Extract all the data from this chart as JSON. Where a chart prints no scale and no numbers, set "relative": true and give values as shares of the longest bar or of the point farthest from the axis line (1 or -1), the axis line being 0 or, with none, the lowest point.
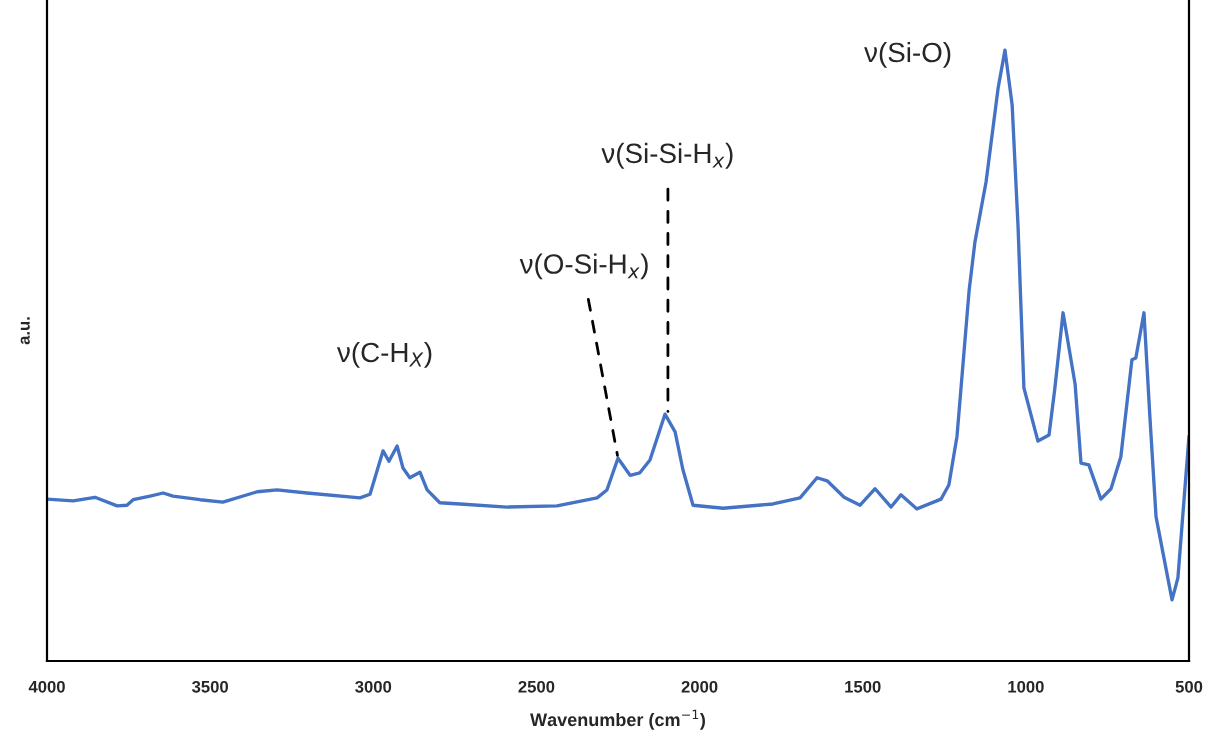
{
  "chart_data": {
    "type": "line",
    "relative": true,
    "xlabel": "Wavenumber (cm$^{−1}$)",
    "ylabel": "a.u.",
    "xlim": [
      4000,
      500
    ],
    "xticks": [
      4000,
      3500,
      3000,
      2500,
      2000,
      1500,
      1000,
      500
    ],
    "grid": false,
    "legend": false,
    "marker": "none",
    "line_style": "solid",
    "series": [
      {
        "color": "#4472c4",
        "x": [
          4000,
          3920,
          3853,
          3785,
          3755,
          3736,
          3684,
          3644,
          3614,
          3531,
          3461,
          3356,
          3295,
          3203,
          3041,
          3010,
          2970,
          2952,
          2927,
          2909,
          2888,
          2857,
          2835,
          2796,
          2734,
          2590,
          2437,
          2314,
          2284,
          2250,
          2213,
          2183,
          2152,
          2106,
          2075,
          2051,
          2020,
          1928,
          1775,
          1692,
          1640,
          1609,
          1557,
          1508,
          1462,
          1413,
          1383,
          1334,
          1260,
          1236,
          1211,
          1174,
          1156,
          1122,
          1085,
          1064,
          1042,
          1024,
          1006,
          963,
          929,
          911,
          886,
          849,
          831,
          807,
          770,
          739,
          709,
          675,
          663,
          638,
          620,
          601,
          552,
          534,
          500
        ],
        "values": [
          0.265,
          0.262,
          0.268,
          0.254,
          0.255,
          0.264,
          0.27,
          0.275,
          0.27,
          0.264,
          0.26,
          0.277,
          0.28,
          0.275,
          0.267,
          0.273,
          0.344,
          0.327,
          0.352,
          0.316,
          0.3,
          0.309,
          0.28,
          0.259,
          0.257,
          0.252,
          0.254,
          0.267,
          0.28,
          0.332,
          0.304,
          0.308,
          0.329,
          0.404,
          0.375,
          0.313,
          0.255,
          0.25,
          0.257,
          0.267,
          0.3,
          0.295,
          0.268,
          0.255,
          0.282,
          0.252,
          0.272,
          0.249,
          0.265,
          0.288,
          0.368,
          0.606,
          0.686,
          0.784,
          0.938,
          1.0,
          0.91,
          0.712,
          0.447,
          0.36,
          0.37,
          0.447,
          0.57,
          0.453,
          0.324,
          0.321,
          0.265,
          0.282,
          0.334,
          0.493,
          0.496,
          0.57,
          0.401,
          0.236,
          0.1,
          0.136,
          0.368
        ]
      }
    ],
    "annotations": [
      "ν(C-H$_{X}$)",
      {
        "text": "ν(O-Si-H$_{x}$)",
        "x": 2250,
        "y": 0.332
      },
      {
        "text": "ν(Si-Si-H$_{x}$)",
        "x": 2097,
        "y": 0.404
      },
      "ν(Si-O)"
    ]
  }
}
